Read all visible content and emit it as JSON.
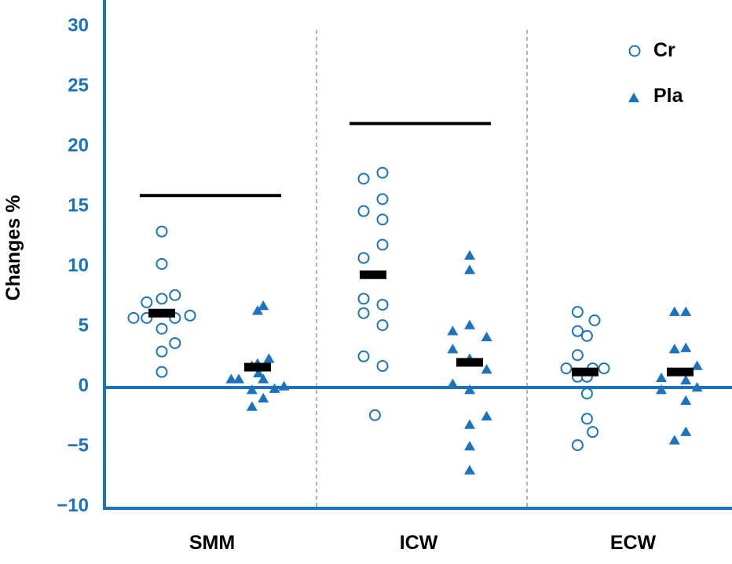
{
  "chart_data": {
    "type": "scatter",
    "xlabel": "",
    "ylabel": "Changes %",
    "ylim": [
      -10,
      30
    ],
    "yticks": [
      30,
      25,
      20,
      15,
      10,
      5,
      0,
      -5,
      -10
    ],
    "ytick_labels": [
      "30",
      "25",
      "20",
      "15",
      "10",
      "5",
      "0",
      "−5",
      "−10"
    ],
    "categories": [
      "SMM",
      "ICW",
      "ECW"
    ],
    "legend": {
      "placement": "top-right"
    },
    "colors": {
      "axis": "#1a73c0",
      "marker": "#1a73c0",
      "mean": "#000000",
      "divider": "#999999"
    },
    "series": [
      {
        "name": "Cr",
        "marker": "open-circle",
        "groups": [
          [
            {
              "dx": -1.5,
              "y": 5.6
            },
            {
              "dx": -0.8,
              "y": 5.6
            },
            {
              "dx": -0.8,
              "y": 6.9
            },
            {
              "dx": 0,
              "y": 12.8
            },
            {
              "dx": 0,
              "y": 10.1
            },
            {
              "dx": 0,
              "y": 7.2
            },
            {
              "dx": 0,
              "y": 4.7
            },
            {
              "dx": 0,
              "y": 2.8
            },
            {
              "dx": 0,
              "y": 1.1
            },
            {
              "dx": 0.7,
              "y": 7.5
            },
            {
              "dx": 0.7,
              "y": 5.6
            },
            {
              "dx": 0.7,
              "y": 3.5
            },
            {
              "dx": 1.5,
              "y": 5.8
            }
          ],
          [
            {
              "dx": -0.5,
              "y": 17.2
            },
            {
              "dx": -0.5,
              "y": 14.5
            },
            {
              "dx": -0.5,
              "y": 10.6
            },
            {
              "dx": -0.5,
              "y": 7.2
            },
            {
              "dx": -0.5,
              "y": 6.0
            },
            {
              "dx": -0.5,
              "y": 2.4
            },
            {
              "dx": 0.1,
              "y": -2.5
            },
            {
              "dx": 0.5,
              "y": 17.7
            },
            {
              "dx": 0.5,
              "y": 15.5
            },
            {
              "dx": 0.5,
              "y": 13.8
            },
            {
              "dx": 0.5,
              "y": 11.7
            },
            {
              "dx": 0.5,
              "y": 6.7
            },
            {
              "dx": 0.5,
              "y": 5.0
            },
            {
              "dx": 0.5,
              "y": 1.6
            }
          ],
          [
            {
              "dx": -1.0,
              "y": 1.4
            },
            {
              "dx": -0.4,
              "y": 6.1
            },
            {
              "dx": -0.4,
              "y": 4.5
            },
            {
              "dx": -0.4,
              "y": 2.5
            },
            {
              "dx": -0.4,
              "y": 0.7
            },
            {
              "dx": -0.4,
              "y": -5.0
            },
            {
              "dx": 0.1,
              "y": 4.1
            },
            {
              "dx": 0.1,
              "y": 0.7
            },
            {
              "dx": 0.1,
              "y": -0.7
            },
            {
              "dx": 0.1,
              "y": -2.8
            },
            {
              "dx": 0.4,
              "y": 1.4
            },
            {
              "dx": 0.4,
              "y": -3.9
            },
            {
              "dx": 0.5,
              "y": 5.4
            },
            {
              "dx": 1.0,
              "y": 1.4
            }
          ]
        ],
        "means": [
          6.0,
          9.2,
          1.1
        ]
      },
      {
        "name": "Pla",
        "marker": "filled-triangle",
        "groups": [
          [
            {
              "dx": -1.4,
              "y": 0.5
            },
            {
              "dx": -1.0,
              "y": 0.5
            },
            {
              "dx": -0.3,
              "y": 1.6
            },
            {
              "dx": -0.3,
              "y": -0.4
            },
            {
              "dx": -0.3,
              "y": -1.8
            },
            {
              "dx": 0,
              "y": 6.2
            },
            {
              "dx": 0,
              "y": 1.8
            },
            {
              "dx": 0.05,
              "y": 1.0
            },
            {
              "dx": 0.3,
              "y": 6.6
            },
            {
              "dx": 0.3,
              "y": 0.5
            },
            {
              "dx": 0.3,
              "y": -1.1
            },
            {
              "dx": 0.6,
              "y": 2.2
            },
            {
              "dx": 0.9,
              "y": -0.3
            },
            {
              "dx": 1.4,
              "y": -0.1
            }
          ],
          [
            {
              "dx": -0.9,
              "y": 4.5
            },
            {
              "dx": -0.9,
              "y": 3.0
            },
            {
              "dx": -0.9,
              "y": 0.1
            },
            {
              "dx": 0,
              "y": 10.8
            },
            {
              "dx": 0,
              "y": 9.6
            },
            {
              "dx": 0,
              "y": 5.0
            },
            {
              "dx": 0,
              "y": 2.2
            },
            {
              "dx": 0,
              "y": -0.4
            },
            {
              "dx": 0,
              "y": -3.3
            },
            {
              "dx": 0,
              "y": -5.1
            },
            {
              "dx": 0,
              "y": -7.1
            },
            {
              "dx": 0.9,
              "y": 4.0
            },
            {
              "dx": 0.9,
              "y": 1.3
            },
            {
              "dx": 0.9,
              "y": -2.6
            }
          ],
          [
            {
              "dx": -1.0,
              "y": 0.6
            },
            {
              "dx": -1.0,
              "y": -0.4
            },
            {
              "dx": -0.3,
              "y": 6.1
            },
            {
              "dx": -0.3,
              "y": 3.0
            },
            {
              "dx": -0.3,
              "y": -4.6
            },
            {
              "dx": 0.3,
              "y": 6.1
            },
            {
              "dx": 0.3,
              "y": 3.1
            },
            {
              "dx": 0.3,
              "y": 0.4
            },
            {
              "dx": 0.3,
              "y": -1.3
            },
            {
              "dx": 0.3,
              "y": -3.9
            },
            {
              "dx": 0.9,
              "y": 1.6
            },
            {
              "dx": 0.9,
              "y": -0.2
            }
          ]
        ],
        "means": [
          1.5,
          1.9,
          1.1
        ]
      }
    ],
    "significance_lines": [
      {
        "category": "SMM",
        "y": 15.8
      },
      {
        "category": "ICW",
        "y": 21.8
      }
    ]
  }
}
